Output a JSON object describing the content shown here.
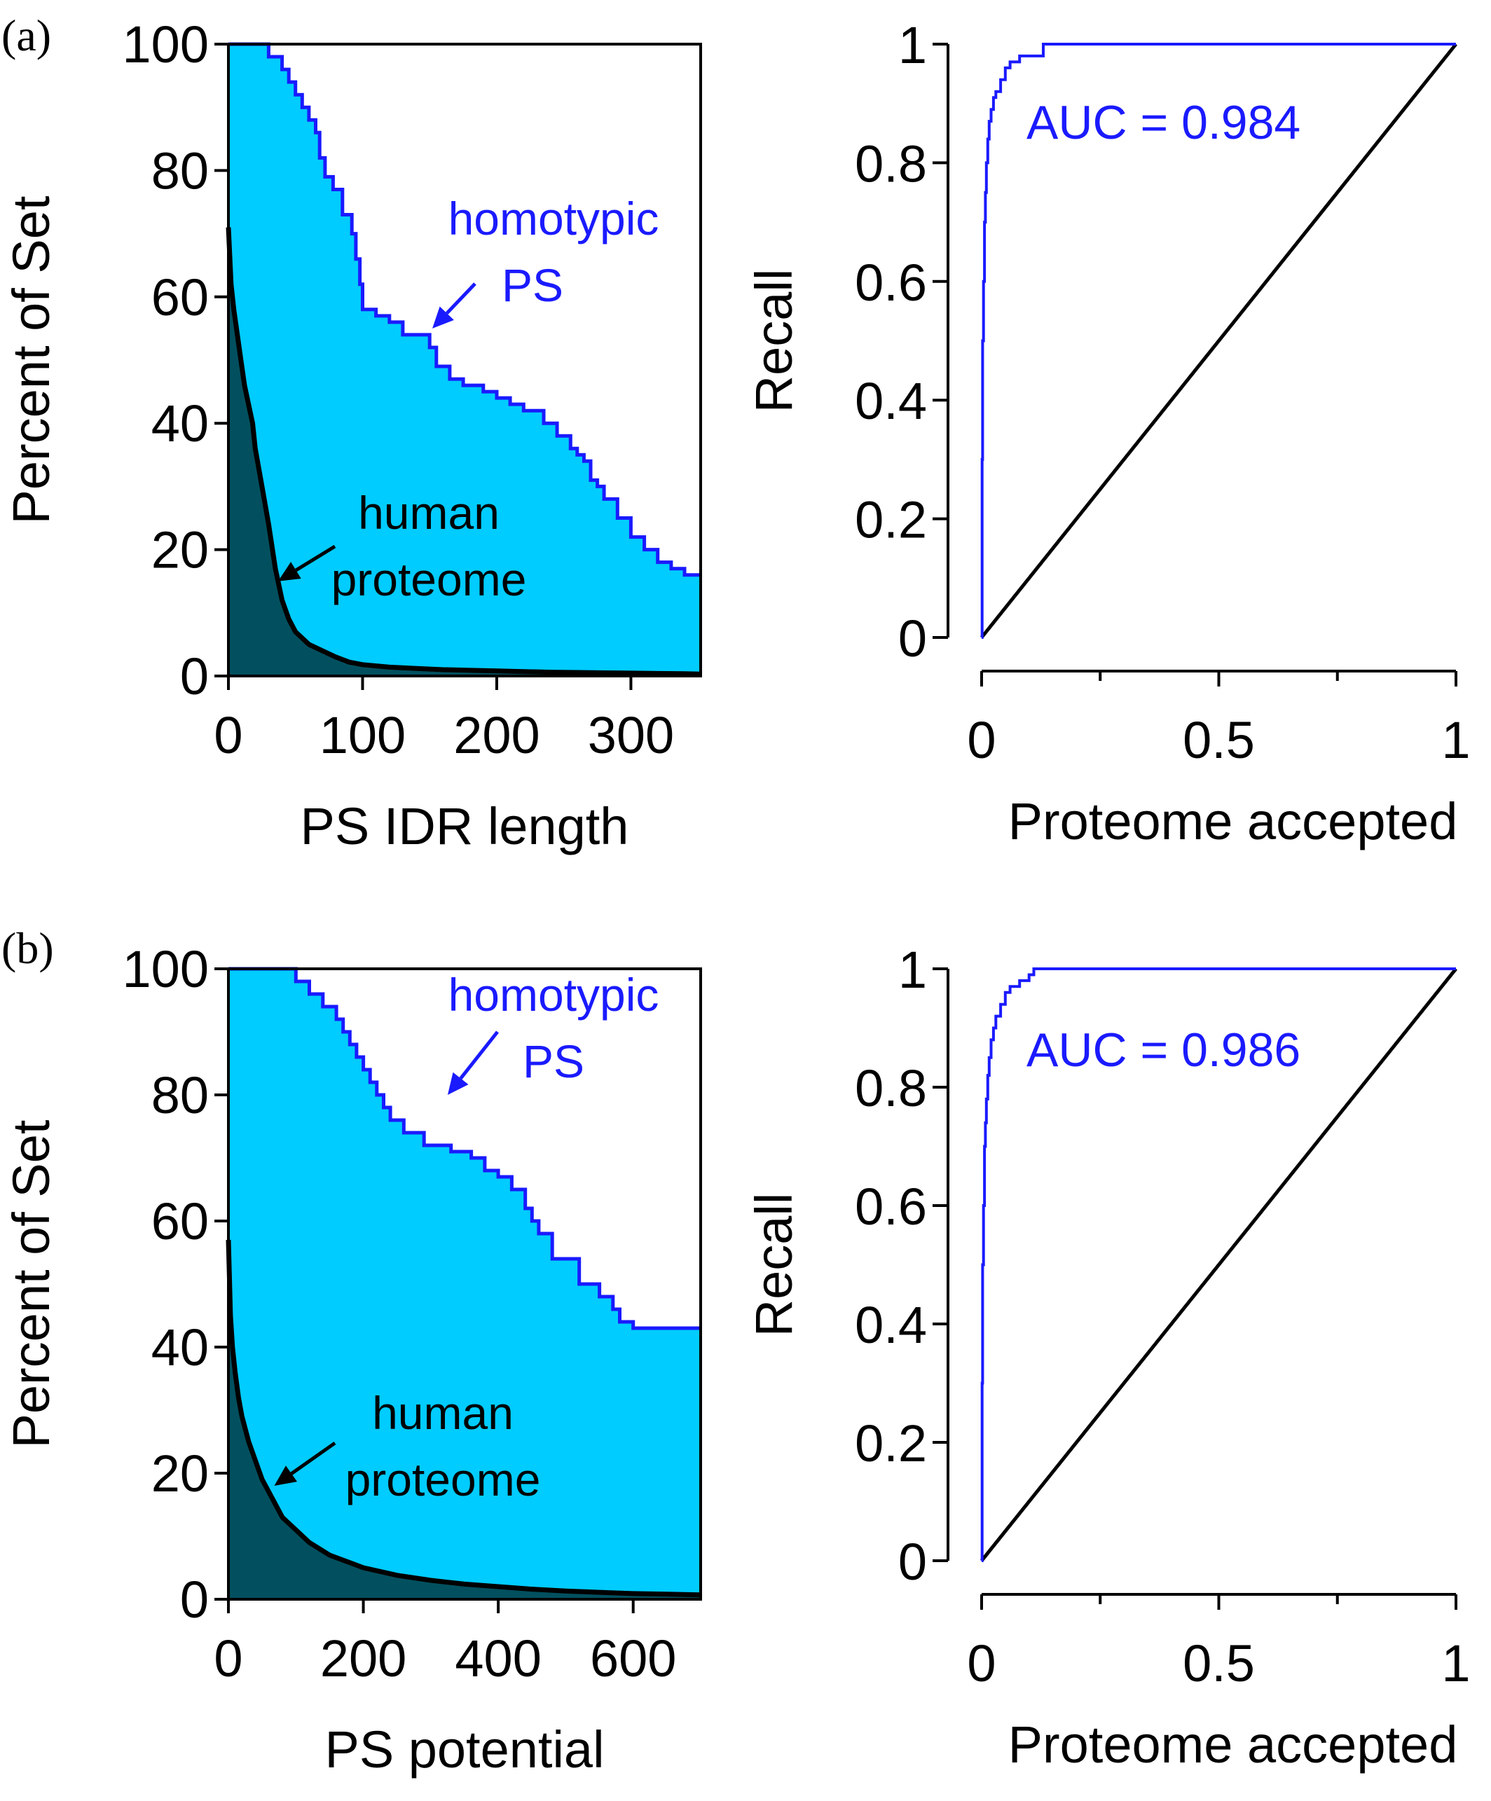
{
  "figure": {
    "panels": [
      {
        "label": "(a)"
      },
      {
        "label": "(b)"
      }
    ]
  },
  "colors": {
    "homotypic_fill": "#00ccff",
    "human_fill": "#02505f",
    "homotypic_line": "#1a1aff",
    "human_line": "#000000",
    "roc_line": "#1a1aff",
    "diagonal_line": "#000000",
    "annotation_blue": "#1a1aff",
    "annotation_black": "#000000"
  },
  "chart_data": [
    {
      "id": "a-left",
      "type": "area",
      "title": "",
      "xlabel": "PS IDR length",
      "ylabel": "Percent of Set",
      "xlim": [
        0,
        352
      ],
      "ylim": [
        0,
        100
      ],
      "xticks": [
        0,
        100,
        200,
        300
      ],
      "yticks": [
        0,
        20,
        40,
        60,
        80,
        100
      ],
      "grid": false,
      "annotations": [
        {
          "lines": [
            "homotypic",
            "PS"
          ],
          "color": "blue",
          "arrow_to": [
            152,
            55
          ]
        },
        {
          "lines": [
            "human",
            "proteome"
          ],
          "color": "black",
          "arrow_to": [
            37,
            15
          ]
        }
      ],
      "series": [
        {
          "role": "homotypic",
          "style": "step",
          "x": [
            0,
            30,
            40,
            45,
            50,
            55,
            60,
            65,
            68,
            72,
            78,
            85,
            92,
            95,
            98,
            100,
            110,
            120,
            130,
            138,
            150,
            155,
            165,
            175,
            190,
            200,
            210,
            220,
            235,
            245,
            255,
            260,
            265,
            270,
            275,
            280,
            290,
            300,
            310,
            320,
            330,
            340,
            352
          ],
          "y": [
            100,
            98,
            96,
            94,
            92,
            90,
            88,
            86,
            82,
            79,
            77,
            73,
            70,
            66,
            62,
            58,
            57,
            56,
            54,
            54,
            52,
            49,
            47,
            46,
            45,
            44,
            43,
            42,
            40,
            38,
            36,
            35,
            34,
            31,
            30,
            28,
            25,
            22,
            20,
            18,
            17,
            16,
            16
          ]
        },
        {
          "role": "human",
          "style": "smooth",
          "x": [
            0,
            2,
            4,
            6,
            8,
            10,
            12,
            15,
            18,
            20,
            25,
            30,
            35,
            40,
            45,
            50,
            60,
            70,
            80,
            90,
            100,
            120,
            140,
            160,
            180,
            200,
            220,
            240,
            260,
            280,
            300,
            320,
            340,
            352
          ],
          "y": [
            71,
            62,
            58,
            55,
            52,
            49,
            46,
            43,
            40,
            36,
            30,
            24,
            17,
            12,
            9,
            7,
            5,
            4,
            3,
            2.2,
            1.8,
            1.4,
            1.2,
            1.0,
            0.9,
            0.8,
            0.7,
            0.6,
            0.55,
            0.5,
            0.45,
            0.4,
            0.35,
            0.3
          ]
        }
      ]
    },
    {
      "id": "a-right",
      "type": "line",
      "title": "",
      "xlabel": "Proteome accepted",
      "ylabel": "Recall",
      "xlim": [
        0,
        1
      ],
      "ylim": [
        0,
        1
      ],
      "xticks": [
        0,
        0.5,
        1
      ],
      "xtick_labels": [
        "0",
        "0.5",
        "1"
      ],
      "xminor": [
        0.25,
        0.75
      ],
      "yticks": [
        0,
        0.2,
        0.4,
        0.6,
        0.8,
        1
      ],
      "ytick_labels": [
        "0",
        "0.2",
        "0.4",
        "0.6",
        "0.8",
        "1"
      ],
      "grid": false,
      "annotations": [
        {
          "lines": [
            "AUC = 0.984"
          ],
          "color": "blue"
        }
      ],
      "series": [
        {
          "role": "roc",
          "x": [
            0,
            0.001,
            0.002,
            0.004,
            0.006,
            0.008,
            0.01,
            0.013,
            0.016,
            0.02,
            0.025,
            0.03,
            0.04,
            0.05,
            0.06,
            0.08,
            0.1,
            0.12,
            0.13,
            0.2,
            0.5,
            1.0
          ],
          "y": [
            0,
            0.3,
            0.5,
            0.6,
            0.7,
            0.75,
            0.8,
            0.84,
            0.87,
            0.89,
            0.91,
            0.92,
            0.94,
            0.96,
            0.97,
            0.98,
            0.98,
            0.98,
            1.0,
            1.0,
            1.0,
            1.0
          ]
        },
        {
          "role": "diagonal",
          "x": [
            0,
            1
          ],
          "y": [
            0,
            1
          ]
        }
      ]
    },
    {
      "id": "b-left",
      "type": "area",
      "title": "",
      "xlabel": "PS potential",
      "ylabel": "Percent of Set",
      "xlim": [
        0,
        700
      ],
      "ylim": [
        0,
        100
      ],
      "xticks": [
        0,
        200,
        400,
        600
      ],
      "yticks": [
        0,
        20,
        40,
        60,
        80,
        100
      ],
      "grid": false,
      "annotations": [
        {
          "lines": [
            "homotypic",
            "PS"
          ],
          "color": "blue",
          "arrow_to": [
            325,
            80
          ]
        },
        {
          "lines": [
            "human",
            "proteome"
          ],
          "color": "black",
          "arrow_to": [
            68,
            18
          ]
        }
      ],
      "series": [
        {
          "role": "homotypic",
          "style": "step",
          "x": [
            0,
            100,
            120,
            140,
            160,
            170,
            180,
            190,
            200,
            210,
            220,
            230,
            240,
            260,
            290,
            330,
            360,
            380,
            400,
            420,
            440,
            450,
            460,
            480,
            520,
            550,
            570,
            580,
            600,
            700
          ],
          "y": [
            100,
            98,
            96,
            94,
            92,
            90,
            88,
            86,
            84,
            82,
            80,
            78,
            76,
            74,
            72,
            71,
            70,
            68,
            67,
            65,
            62,
            60,
            58,
            54,
            50,
            48,
            46,
            44,
            43,
            43
          ]
        },
        {
          "role": "human",
          "style": "smooth",
          "x": [
            0,
            3,
            6,
            10,
            15,
            20,
            30,
            40,
            50,
            60,
            80,
            100,
            120,
            150,
            200,
            250,
            300,
            350,
            400,
            450,
            500,
            550,
            600,
            650,
            700
          ],
          "y": [
            57,
            45,
            40,
            36,
            32,
            29,
            25,
            22,
            19,
            17,
            13,
            11,
            9,
            7,
            5,
            3.8,
            3,
            2.4,
            2,
            1.6,
            1.3,
            1.1,
            0.9,
            0.8,
            0.7
          ]
        }
      ]
    },
    {
      "id": "b-right",
      "type": "line",
      "title": "",
      "xlabel": "Proteome accepted",
      "ylabel": "Recall",
      "xlim": [
        0,
        1
      ],
      "ylim": [
        0,
        1
      ],
      "xticks": [
        0,
        0.5,
        1
      ],
      "xtick_labels": [
        "0",
        "0.5",
        "1"
      ],
      "xminor": [
        0.25,
        0.75
      ],
      "yticks": [
        0,
        0.2,
        0.4,
        0.6,
        0.8,
        1
      ],
      "ytick_labels": [
        "0",
        "0.2",
        "0.4",
        "0.6",
        "0.8",
        "1"
      ],
      "grid": false,
      "annotations": [
        {
          "lines": [
            "AUC = 0.986"
          ],
          "color": "blue"
        }
      ],
      "series": [
        {
          "role": "roc",
          "x": [
            0,
            0.001,
            0.002,
            0.004,
            0.006,
            0.008,
            0.01,
            0.013,
            0.016,
            0.02,
            0.025,
            0.03,
            0.04,
            0.05,
            0.06,
            0.08,
            0.1,
            0.11,
            0.2,
            0.5,
            1.0
          ],
          "y": [
            0,
            0.3,
            0.5,
            0.6,
            0.7,
            0.74,
            0.78,
            0.82,
            0.85,
            0.88,
            0.9,
            0.92,
            0.94,
            0.96,
            0.97,
            0.98,
            0.99,
            1.0,
            1.0,
            1.0,
            1.0
          ]
        },
        {
          "role": "diagonal",
          "x": [
            0,
            1
          ],
          "y": [
            0,
            1
          ]
        }
      ]
    }
  ]
}
